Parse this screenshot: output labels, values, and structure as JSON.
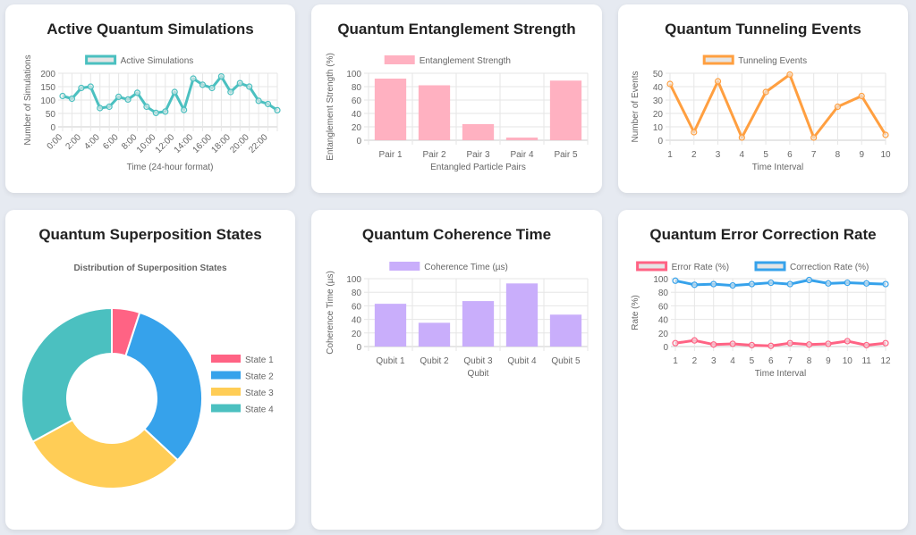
{
  "chart_data": [
    {
      "id": "c1",
      "type": "line",
      "title": "Active Quantum Simulations",
      "legend": [
        "Active Simulations"
      ],
      "xlabel": "Time (24-hour format)",
      "ylabel": "Number of Simulations",
      "ylim": [
        0,
        200
      ],
      "yticks": [
        0,
        50,
        100,
        150,
        200
      ],
      "categories": [
        "0:00",
        "1:00",
        "2:00",
        "3:00",
        "4:00",
        "5:00",
        "6:00",
        "7:00",
        "8:00",
        "9:00",
        "10:00",
        "11:00",
        "12:00",
        "13:00",
        "14:00",
        "15:00",
        "16:00",
        "17:00",
        "18:00",
        "19:00",
        "20:00",
        "21:00",
        "22:00",
        "23:00"
      ],
      "series": [
        {
          "name": "Active Simulations",
          "color": "#4bc0c0",
          "values": [
            115,
            105,
            145,
            150,
            70,
            75,
            112,
            102,
            127,
            75,
            52,
            57,
            130,
            63,
            180,
            157,
            145,
            188,
            130,
            163,
            150,
            97,
            85,
            62
          ]
        }
      ]
    },
    {
      "id": "c2",
      "type": "bar",
      "title": "Quantum Entanglement Strength",
      "legend": [
        "Entanglement Strength"
      ],
      "xlabel": "Entangled Particle Pairs",
      "ylabel": "Entanglement Strength (%)",
      "ylim": [
        0,
        100
      ],
      "yticks": [
        0,
        20,
        40,
        60,
        80,
        100
      ],
      "categories": [
        "Pair 1",
        "Pair 2",
        "Pair 3",
        "Pair 4",
        "Pair 5"
      ],
      "series": [
        {
          "name": "Entanglement Strength",
          "color": "#ffb1c1",
          "values": [
            92,
            82,
            24,
            4,
            89
          ]
        }
      ]
    },
    {
      "id": "c3",
      "type": "line",
      "title": "Quantum Tunneling Events",
      "legend": [
        "Tunneling Events"
      ],
      "xlabel": "Time Interval",
      "ylabel": "Number of Events",
      "ylim": [
        0,
        50
      ],
      "yticks": [
        0,
        10,
        20,
        30,
        40,
        50
      ],
      "categories": [
        "1",
        "2",
        "3",
        "4",
        "5",
        "6",
        "7",
        "8",
        "9",
        "10"
      ],
      "series": [
        {
          "name": "Tunneling Events",
          "color": "#ff9f40",
          "values": [
            42,
            6,
            44,
            2,
            36,
            49,
            2,
            25,
            33,
            4
          ]
        }
      ]
    },
    {
      "id": "c4",
      "type": "pie",
      "title": "Quantum Superposition States",
      "subtitle": "Distribution of Superposition States",
      "legend_position": "right",
      "categories": [
        "State 1",
        "State 2",
        "State 3",
        "State 4"
      ],
      "values": [
        5,
        32,
        30,
        33
      ],
      "colors": [
        "#ff6384",
        "#36a2eb",
        "#ffcd56",
        "#4bc0c0"
      ]
    },
    {
      "id": "c5",
      "type": "bar",
      "title": "Quantum Coherence Time",
      "legend": [
        "Coherence Time (µs)"
      ],
      "xlabel": "Qubit",
      "ylabel": "Coherence Time (µs)",
      "ylim": [
        0,
        100
      ],
      "yticks": [
        0,
        20,
        40,
        60,
        80,
        100
      ],
      "categories": [
        "Qubit 1",
        "Qubit 2",
        "Qubit 3",
        "Qubit 4",
        "Qubit 5"
      ],
      "series": [
        {
          "name": "Coherence Time (µs)",
          "color": "#c9aefb",
          "values": [
            63,
            35,
            67,
            93,
            47
          ]
        }
      ]
    },
    {
      "id": "c6",
      "type": "line",
      "title": "Quantum Error Correction Rate",
      "legend": [
        "Error Rate (%)",
        "Correction Rate (%)"
      ],
      "xlabel": "Time Interval",
      "ylabel": "Rate (%)",
      "ylim": [
        0,
        100
      ],
      "yticks": [
        0,
        20,
        40,
        60,
        80,
        100
      ],
      "categories": [
        "1",
        "2",
        "3",
        "4",
        "5",
        "6",
        "7",
        "8",
        "9",
        "10",
        "11",
        "12"
      ],
      "series": [
        {
          "name": "Error Rate (%)",
          "color": "#ff6384",
          "values": [
            5,
            9,
            3,
            4,
            2,
            1,
            5,
            3,
            4,
            8,
            2,
            5
          ]
        },
        {
          "name": "Correction Rate (%)",
          "color": "#36a2eb",
          "values": [
            97,
            91,
            92,
            90,
            92,
            94,
            92,
            98,
            93,
            94,
            93,
            92
          ]
        }
      ]
    }
  ]
}
